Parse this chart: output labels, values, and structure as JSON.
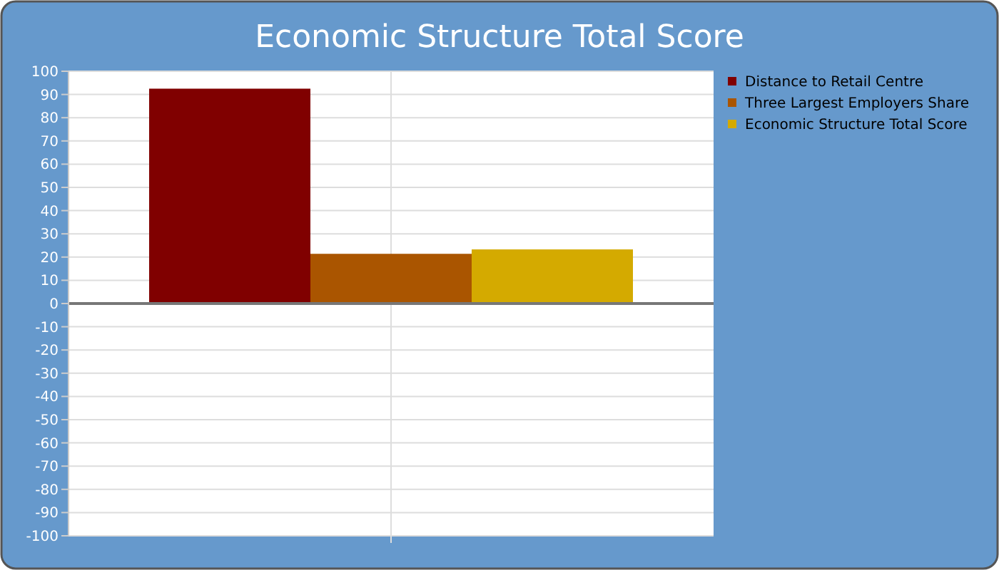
{
  "chart_data": {
    "type": "bar",
    "title": "Economic Structure Total Score",
    "categories": [
      null
    ],
    "series": [
      {
        "name": "Distance to Retail Centre",
        "color": "#800000",
        "values": [
          92.5
        ]
      },
      {
        "name": "Three Largest Employers Share",
        "color": "#aa5500",
        "values": [
          21.4
        ]
      },
      {
        "name": "Economic Structure Total Score",
        "color": "#d4aa00",
        "values": [
          23.3
        ]
      }
    ],
    "ylim": [
      -100,
      100
    ],
    "yticks": [
      -100,
      -90,
      -80,
      -70,
      -60,
      -50,
      -40,
      -30,
      -20,
      -10,
      0,
      10,
      20,
      30,
      40,
      50,
      60,
      70,
      80,
      90,
      100
    ],
    "grid": true,
    "legend": "top right"
  }
}
